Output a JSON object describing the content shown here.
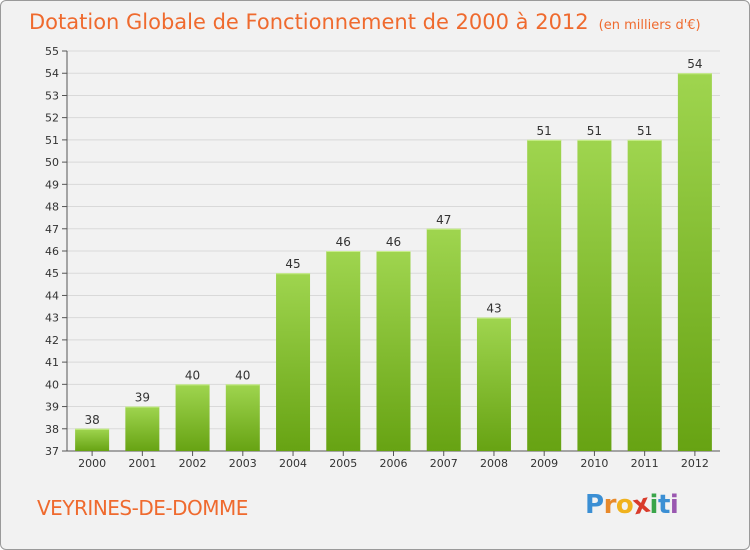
{
  "header": {
    "title": "Dotation Globale de Fonctionnement de 2000 à 2012",
    "unit": "(en milliers d'€)"
  },
  "footer": {
    "commune": "VEYRINES-DE-DOMME",
    "logo": {
      "letters": [
        "P",
        "r",
        "o",
        "x",
        "i",
        "t",
        "i"
      ],
      "colors": [
        "#3b8fd4",
        "#e8892a",
        "#f0b21e",
        "#d93b2b",
        "#3aa54a",
        "#3b8fd4",
        "#9a57b0"
      ]
    }
  },
  "colors": {
    "accent": "#ef6a2e",
    "bar_light": "#9fd54f",
    "bar_dark": "#67a313",
    "background": "#f2f2f2",
    "grid": "#d9d9d9"
  },
  "chart_data": {
    "type": "bar",
    "title": "Dotation Globale de Fonctionnement de 2000 à 2012",
    "subtitle": "(en milliers d'€)",
    "xlabel": "",
    "ylabel": "",
    "categories": [
      "2000",
      "2001",
      "2002",
      "2003",
      "2004",
      "2005",
      "2006",
      "2007",
      "2008",
      "2009",
      "2010",
      "2011",
      "2012"
    ],
    "values": [
      38,
      39,
      40,
      40,
      45,
      46,
      46,
      47,
      43,
      51,
      51,
      51,
      54
    ],
    "ylim": [
      37,
      55
    ],
    "yticks": [
      37,
      38,
      39,
      40,
      41,
      42,
      43,
      44,
      45,
      46,
      47,
      48,
      49,
      50,
      51,
      52,
      53,
      54,
      55
    ],
    "grid": true,
    "data_labels": true,
    "legend": "none"
  }
}
